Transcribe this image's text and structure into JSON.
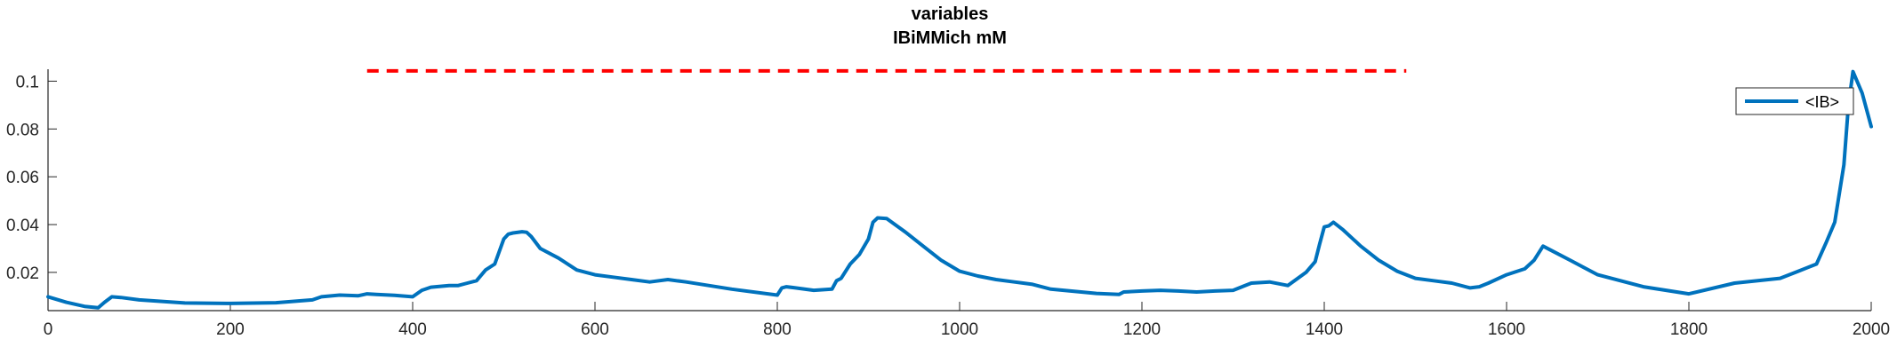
{
  "chart_data": {
    "type": "line",
    "title": [
      "variables",
      "IBiMMich mM"
    ],
    "xlabel": "",
    "ylabel": "",
    "xlim": [
      0,
      2000
    ],
    "ylim": [
      0.004,
      0.105
    ],
    "x_ticks": [
      0,
      200,
      400,
      600,
      800,
      1000,
      1200,
      1400,
      1600,
      1800,
      2000
    ],
    "x_tick_labels": [
      "0",
      "200",
      "400",
      "600",
      "800",
      "1000",
      "1200",
      "1400",
      "1600",
      "1800",
      "2000"
    ],
    "y_ticks": [
      0.02,
      0.04,
      0.06,
      0.08,
      0.1
    ],
    "y_tick_labels": [
      "0.02",
      "0.04",
      "0.06",
      "0.08",
      "0.1"
    ],
    "grid": false,
    "legend_position": "top-right",
    "series": [
      {
        "name": "<IB>",
        "color": "#0072bd",
        "x": [
          0,
          20,
          40,
          55,
          62,
          70,
          80,
          100,
          150,
          200,
          250,
          290,
          300,
          320,
          340,
          350,
          360,
          380,
          400,
          410,
          420,
          440,
          450,
          460,
          470,
          480,
          490,
          500,
          505,
          510,
          520,
          525,
          530,
          540,
          560,
          580,
          600,
          620,
          640,
          660,
          680,
          700,
          750,
          800,
          805,
          810,
          820,
          840,
          860,
          865,
          870,
          880,
          890,
          900,
          905,
          910,
          920,
          940,
          960,
          980,
          1000,
          1020,
          1040,
          1060,
          1080,
          1100,
          1150,
          1175,
          1180,
          1200,
          1220,
          1240,
          1260,
          1280,
          1300,
          1320,
          1340,
          1360,
          1380,
          1390,
          1395,
          1400,
          1405,
          1410,
          1420,
          1440,
          1460,
          1480,
          1500,
          1520,
          1540,
          1560,
          1570,
          1580,
          1600,
          1620,
          1630,
          1640,
          1650,
          1670,
          1700,
          1750,
          1800,
          1850,
          1900,
          1920,
          1940,
          1950,
          1960,
          1970,
          1975,
          1980,
          1990,
          2000
        ],
        "values": [
          0.0098,
          0.0075,
          0.0058,
          0.0052,
          0.0075,
          0.0098,
          0.0095,
          0.0085,
          0.0072,
          0.007,
          0.0073,
          0.0085,
          0.0098,
          0.0105,
          0.0102,
          0.011,
          0.0108,
          0.0104,
          0.0098,
          0.0125,
          0.0138,
          0.0145,
          0.0145,
          0.0155,
          0.0165,
          0.021,
          0.0235,
          0.034,
          0.036,
          0.0365,
          0.037,
          0.0368,
          0.035,
          0.03,
          0.026,
          0.021,
          0.019,
          0.018,
          0.017,
          0.016,
          0.017,
          0.016,
          0.013,
          0.0105,
          0.0135,
          0.014,
          0.0135,
          0.0125,
          0.013,
          0.0165,
          0.0175,
          0.0235,
          0.0275,
          0.034,
          0.041,
          0.0428,
          0.0425,
          0.037,
          0.031,
          0.025,
          0.0205,
          0.0185,
          0.017,
          0.016,
          0.015,
          0.013,
          0.0112,
          0.0108,
          0.0118,
          0.0122,
          0.0125,
          0.0122,
          0.0118,
          0.0122,
          0.0125,
          0.0155,
          0.016,
          0.0145,
          0.02,
          0.0245,
          0.032,
          0.039,
          0.0395,
          0.041,
          0.038,
          0.031,
          0.025,
          0.0205,
          0.0175,
          0.0165,
          0.0155,
          0.0135,
          0.014,
          0.0155,
          0.019,
          0.0215,
          0.025,
          0.031,
          0.029,
          0.025,
          0.019,
          0.014,
          0.011,
          0.0155,
          0.0175,
          0.0205,
          0.0235,
          0.032,
          0.041,
          0.065,
          0.09,
          0.104,
          0.095,
          0.081
        ]
      }
    ],
    "reference_lines": [
      {
        "type": "horizontal-dashed",
        "y": 0.1043,
        "x_start": 350,
        "x_end": 1490,
        "color": "#ff0000"
      }
    ]
  }
}
